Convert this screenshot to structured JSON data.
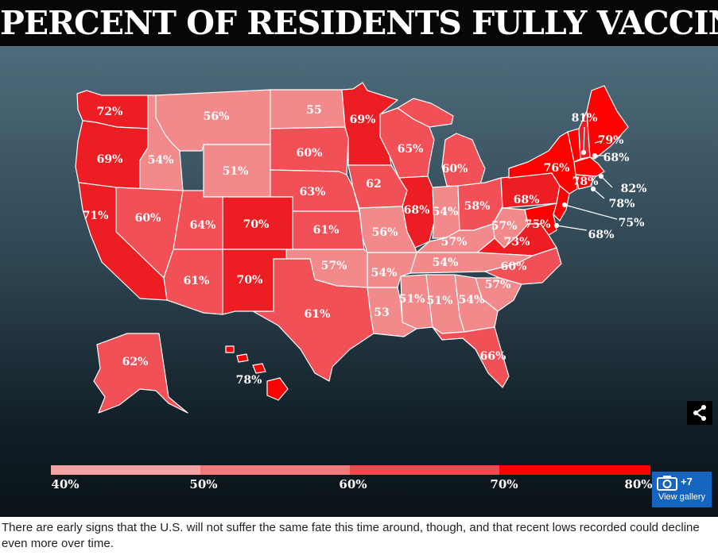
{
  "title": "PERCENT OF RESIDENTS FULLY VACCINATED",
  "colors": {
    "c50": "#f28a8c",
    "c60": "#f05056",
    "c70": "#ec1e24",
    "c80": "#ff0000",
    "border": "#ffffff"
  },
  "states": [
    {
      "label": "72%",
      "value": 72
    },
    {
      "label": "56%",
      "value": 56
    },
    {
      "label": "55",
      "value": 55
    },
    {
      "label": "69%",
      "value": 69
    },
    {
      "label": "69%",
      "value": 69
    },
    {
      "label": "54%",
      "value": 54
    },
    {
      "label": "60%",
      "value": 60
    },
    {
      "label": "65%",
      "value": 65
    },
    {
      "label": "51%",
      "value": 51
    },
    {
      "label": "62",
      "value": 62
    },
    {
      "label": "60%",
      "value": 60
    },
    {
      "label": "63%",
      "value": 63
    },
    {
      "label": "71%",
      "value": 71
    },
    {
      "label": "60%",
      "value": 60
    },
    {
      "label": "64%",
      "value": 64
    },
    {
      "label": "70%",
      "value": 70
    },
    {
      "label": "61%",
      "value": 61
    },
    {
      "label": "56%",
      "value": 56
    },
    {
      "label": "68%",
      "value": 68
    },
    {
      "label": "54%",
      "value": 54
    },
    {
      "label": "58%",
      "value": 58
    },
    {
      "label": "68%",
      "value": 68
    },
    {
      "label": "57%",
      "value": 57
    },
    {
      "label": "57%",
      "value": 57
    },
    {
      "label": "61%",
      "value": 61
    },
    {
      "label": "70%",
      "value": 70
    },
    {
      "label": "57%",
      "value": 57
    },
    {
      "label": "54%",
      "value": 54
    },
    {
      "label": "54%",
      "value": 54
    },
    {
      "label": "73%",
      "value": 73
    },
    {
      "label": "60%",
      "value": 60
    },
    {
      "label": "61%",
      "value": 61
    },
    {
      "label": "53",
      "value": 53
    },
    {
      "label": "51%",
      "value": 51
    },
    {
      "label": "51%",
      "value": 51
    },
    {
      "label": "54%",
      "value": 54
    },
    {
      "label": "57%",
      "value": 57
    },
    {
      "label": "66%",
      "value": 66
    },
    {
      "label": "62%",
      "value": 62
    },
    {
      "label": "78%",
      "value": 78
    },
    {
      "label": "76%",
      "value": 76
    },
    {
      "label": "75%",
      "value": 75
    },
    {
      "label": "78%",
      "value": 78
    }
  ],
  "callouts": [
    {
      "label": "81%",
      "value": 81
    },
    {
      "label": "79%",
      "value": 79
    },
    {
      "label": "68%",
      "value": 68
    },
    {
      "label": "82%",
      "value": 82
    },
    {
      "label": "78%",
      "value": 78
    },
    {
      "label": "75%",
      "value": 75
    },
    {
      "label": "68%",
      "value": 68
    }
  ],
  "legend": {
    "ticks": [
      "40%",
      "50%",
      "60%",
      "70%",
      "80%"
    ],
    "colors": [
      "#f4a2a3",
      "#f17a7d",
      "#f04a50",
      "#ff0000"
    ]
  },
  "share": {
    "icon": "share-icon"
  },
  "gallery": {
    "icon": "camera-icon",
    "count": "+7",
    "label": "View gallery"
  },
  "caption": "There are early signs that the U.S. will not suffer the same fate this time around, though, and that recent lows recorded could decline even more over time."
}
